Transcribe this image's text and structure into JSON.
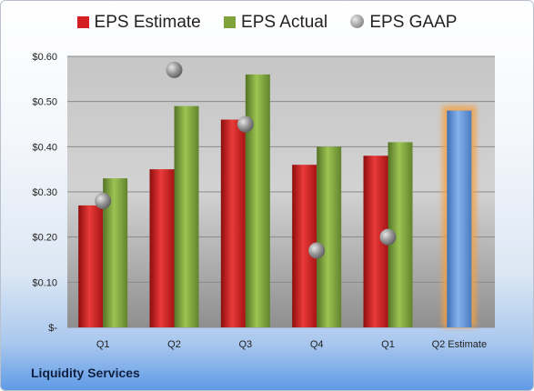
{
  "chart_data": {
    "type": "bar",
    "categories": [
      "Q1",
      "Q2",
      "Q3",
      "Q4",
      "Q1",
      "Q2 Estimate"
    ],
    "series": [
      {
        "name": "EPS Estimate",
        "values": [
          0.27,
          0.35,
          0.46,
          0.36,
          0.38,
          null
        ],
        "color": "#d42020"
      },
      {
        "name": "EPS Actual",
        "values": [
          0.33,
          0.49,
          0.56,
          0.4,
          0.41,
          null
        ],
        "color": "#7fa23a"
      },
      {
        "name": "EPS GAAP",
        "values": [
          0.28,
          0.57,
          0.45,
          0.17,
          0.2,
          null
        ],
        "color": "#9a9a9a",
        "marker": "circle"
      },
      {
        "name": "",
        "values": [
          null,
          null,
          null,
          null,
          null,
          0.48
        ],
        "color": "#5b8fd6"
      }
    ],
    "y_ticks": [
      "$-",
      "$0.10",
      "$0.20",
      "$0.30",
      "$0.40",
      "$0.50",
      "$0.60"
    ],
    "ylim": [
      0,
      0.6
    ],
    "grid": true,
    "legend_position": "top"
  },
  "company": "Liquidity Services"
}
